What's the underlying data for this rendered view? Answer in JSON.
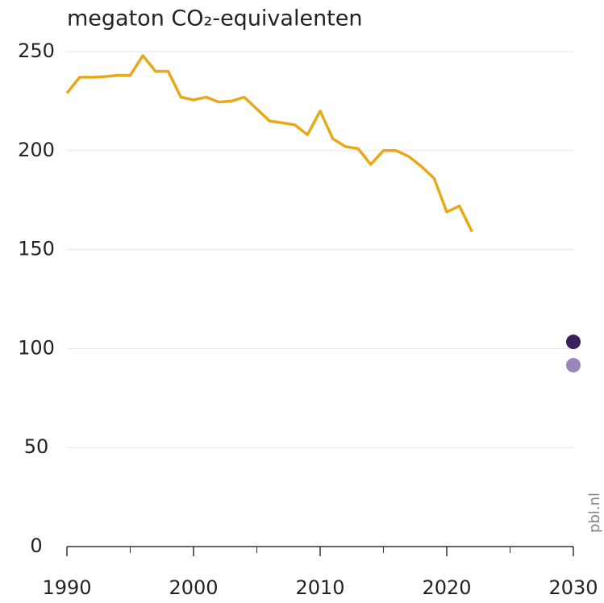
{
  "chart_data": {
    "type": "line",
    "title": "megaton CO₂-equivalenten",
    "source": "pbl.nl",
    "x": [
      1990,
      1991,
      1992,
      1993,
      1994,
      1995,
      1996,
      1997,
      1998,
      1999,
      2000,
      2001,
      2002,
      2003,
      2004,
      2005,
      2006,
      2007,
      2008,
      2009,
      2010,
      2011,
      2012,
      2013,
      2014,
      2015,
      2016,
      2017,
      2018,
      2019,
      2020,
      2021,
      2022
    ],
    "values": [
      229,
      237,
      237,
      237.4,
      238,
      238,
      248,
      240,
      240,
      227,
      225.6,
      227,
      224.5,
      225,
      227,
      221,
      215,
      214,
      213,
      208,
      220,
      206,
      202,
      201,
      193,
      200,
      200,
      197,
      192,
      186,
      169,
      172,
      159
    ],
    "color": "#e8a818",
    "points": {
      "x": [
        2030,
        2030
      ],
      "values": [
        103.4,
        91.6
      ],
      "colors": [
        "#3b1f5e",
        "#9b86bb"
      ]
    },
    "xlim": [
      1990,
      2030
    ],
    "xticks": [
      1990,
      2000,
      2010,
      2020,
      2030
    ],
    "xminorticks": [
      1995,
      2005,
      2015,
      2025
    ],
    "ylim": [
      0,
      250
    ],
    "yticks": [
      0,
      50,
      100,
      150,
      200,
      250
    ],
    "grid": true
  }
}
